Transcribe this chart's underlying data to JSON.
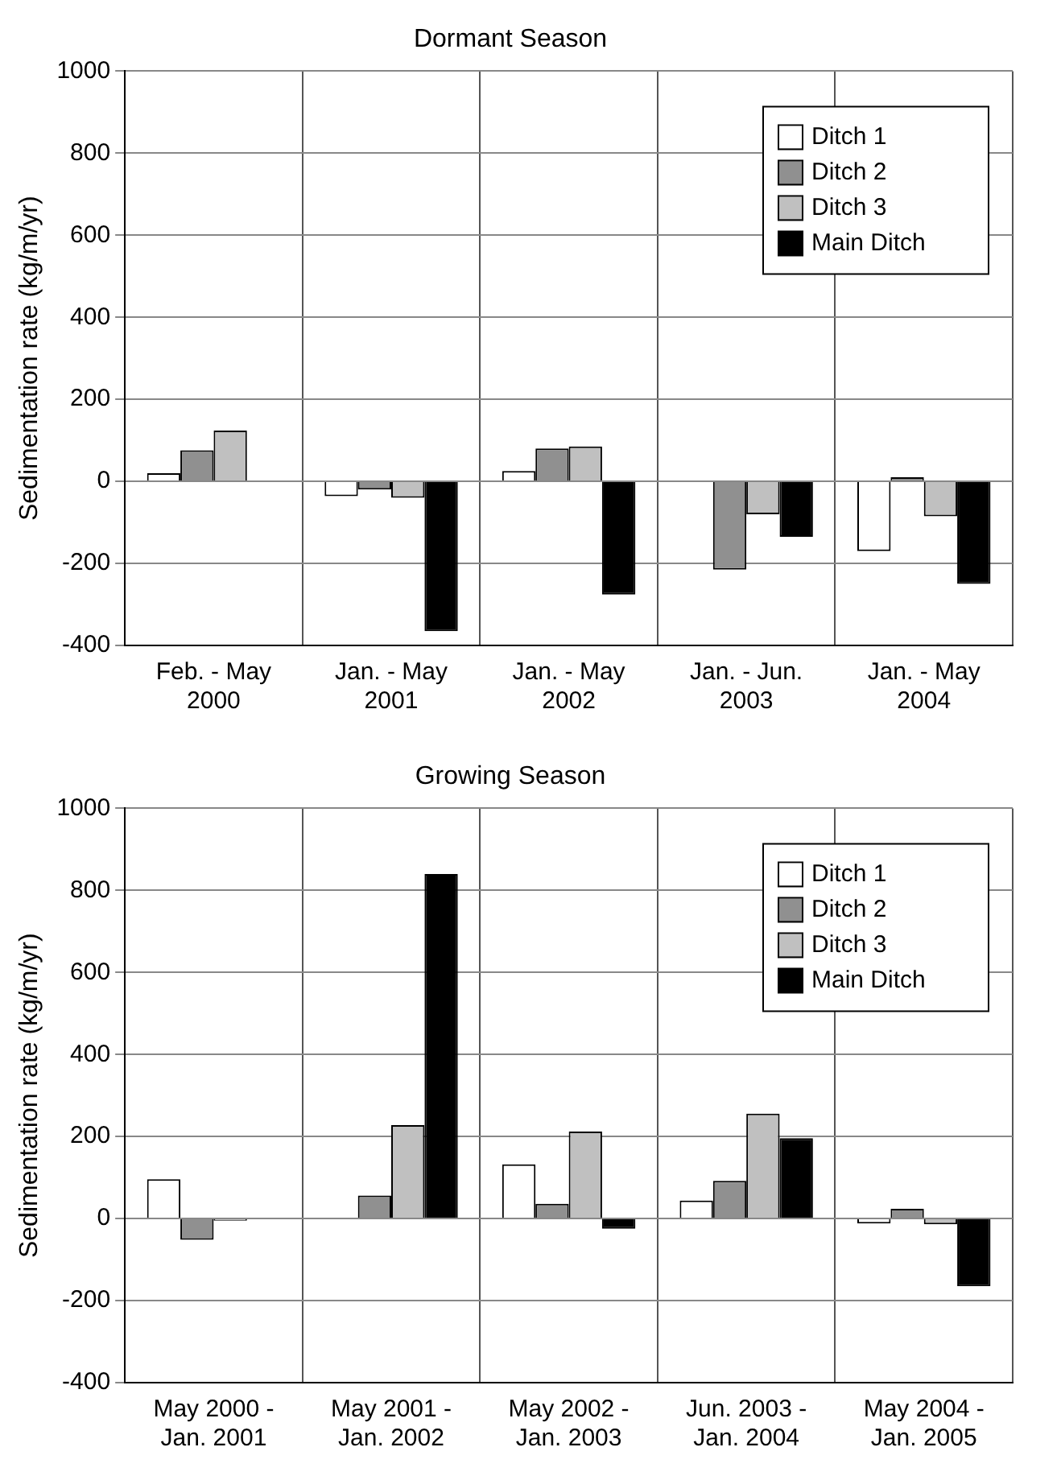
{
  "chart_data": [
    {
      "type": "bar",
      "title": "Dormant Season",
      "ylabel": "Sedimentation rate (kg/m/yr)",
      "categories": [
        "Feb. - May\n2000",
        "Jan. - May\n2001",
        "Jan. - May\n2002",
        "Jan. - Jun.\n2003",
        "Jan. - May\n2004"
      ],
      "series": [
        {
          "name": "Ditch 1",
          "color": "#ffffff",
          "values": [
            20,
            -36,
            25,
            null,
            -170
          ]
        },
        {
          "name": "Ditch 2",
          "color": "#909090",
          "values": [
            76,
            -20,
            80,
            -215,
            10
          ]
        },
        {
          "name": "Ditch 3",
          "color": "#c0c0c0",
          "values": [
            124,
            -40,
            85,
            -80,
            -85
          ]
        },
        {
          "name": "Main Ditch",
          "color": "#000000",
          "values": [
            null,
            -365,
            -276,
            -135,
            -250
          ]
        }
      ],
      "ylim": [
        -400,
        1000
      ],
      "yticks": [
        -400,
        -200,
        0,
        200,
        400,
        600,
        800,
        1000
      ],
      "grid": true,
      "legend": "top right"
    },
    {
      "type": "bar",
      "title": "Growing Season",
      "ylabel": "Sedimentation rate (kg/m/yr)",
      "categories": [
        "May 2000 -\nJan. 2001",
        "May 2001 -\nJan. 2002",
        "May 2002 -\nJan. 2003",
        "Jun. 2003 -\nJan. 2004",
        "May 2004 -\nJan. 2005"
      ],
      "series": [
        {
          "name": "Ditch 1",
          "color": "#ffffff",
          "values": [
            96,
            null,
            132,
            44,
            -12
          ]
        },
        {
          "name": "Ditch 2",
          "color": "#909090",
          "values": [
            -52,
            56,
            36,
            92,
            24
          ]
        },
        {
          "name": "Ditch 3",
          "color": "#c0c0c0",
          "values": [
            -5,
            228,
            212,
            256,
            -14
          ]
        },
        {
          "name": "Main Ditch",
          "color": "#000000",
          "values": [
            null,
            840,
            -25,
            196,
            -165
          ]
        }
      ],
      "ylim": [
        -400,
        1000
      ],
      "yticks": [
        -400,
        -200,
        0,
        200,
        400,
        600,
        800,
        1000
      ],
      "grid": true,
      "legend": "top right"
    }
  ]
}
